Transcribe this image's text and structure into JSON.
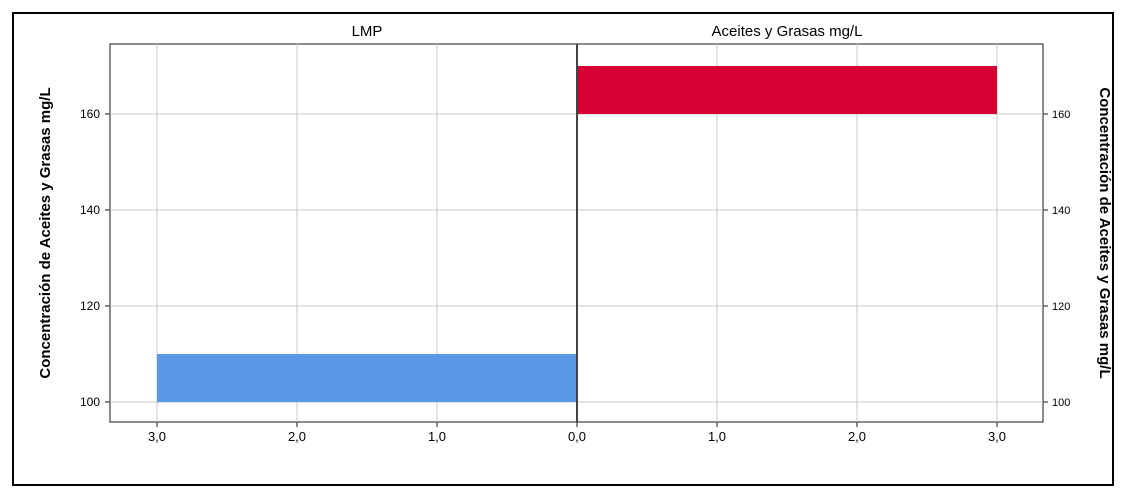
{
  "chart_data": {
    "type": "bar",
    "orientation": "horizontal-population-pyramid",
    "panels": [
      {
        "title": "LMP",
        "direction": "left",
        "color": "#5898E4",
        "bars": [
          {
            "y_from": 100,
            "y_to": 110,
            "value": 3.0
          }
        ]
      },
      {
        "title": "Aceites y Grasas mg/L",
        "direction": "right",
        "color": "#D70033",
        "bars": [
          {
            "y_from": 160,
            "y_to": 170,
            "value": 3.0
          }
        ]
      }
    ],
    "x_ticks": [
      "3,0",
      "2,0",
      "1,0",
      "0,0",
      "1,0",
      "2,0",
      "3,0"
    ],
    "xlim": [
      0,
      3
    ],
    "y_ticks": [
      100,
      120,
      140,
      160
    ],
    "ylim": [
      97.5,
      174
    ],
    "ylabel_left": "Concentración de Aceites y Grasas mg/L",
    "ylabel_right": "Concentración de Aceites y Grasas mg/L",
    "grid": true
  }
}
